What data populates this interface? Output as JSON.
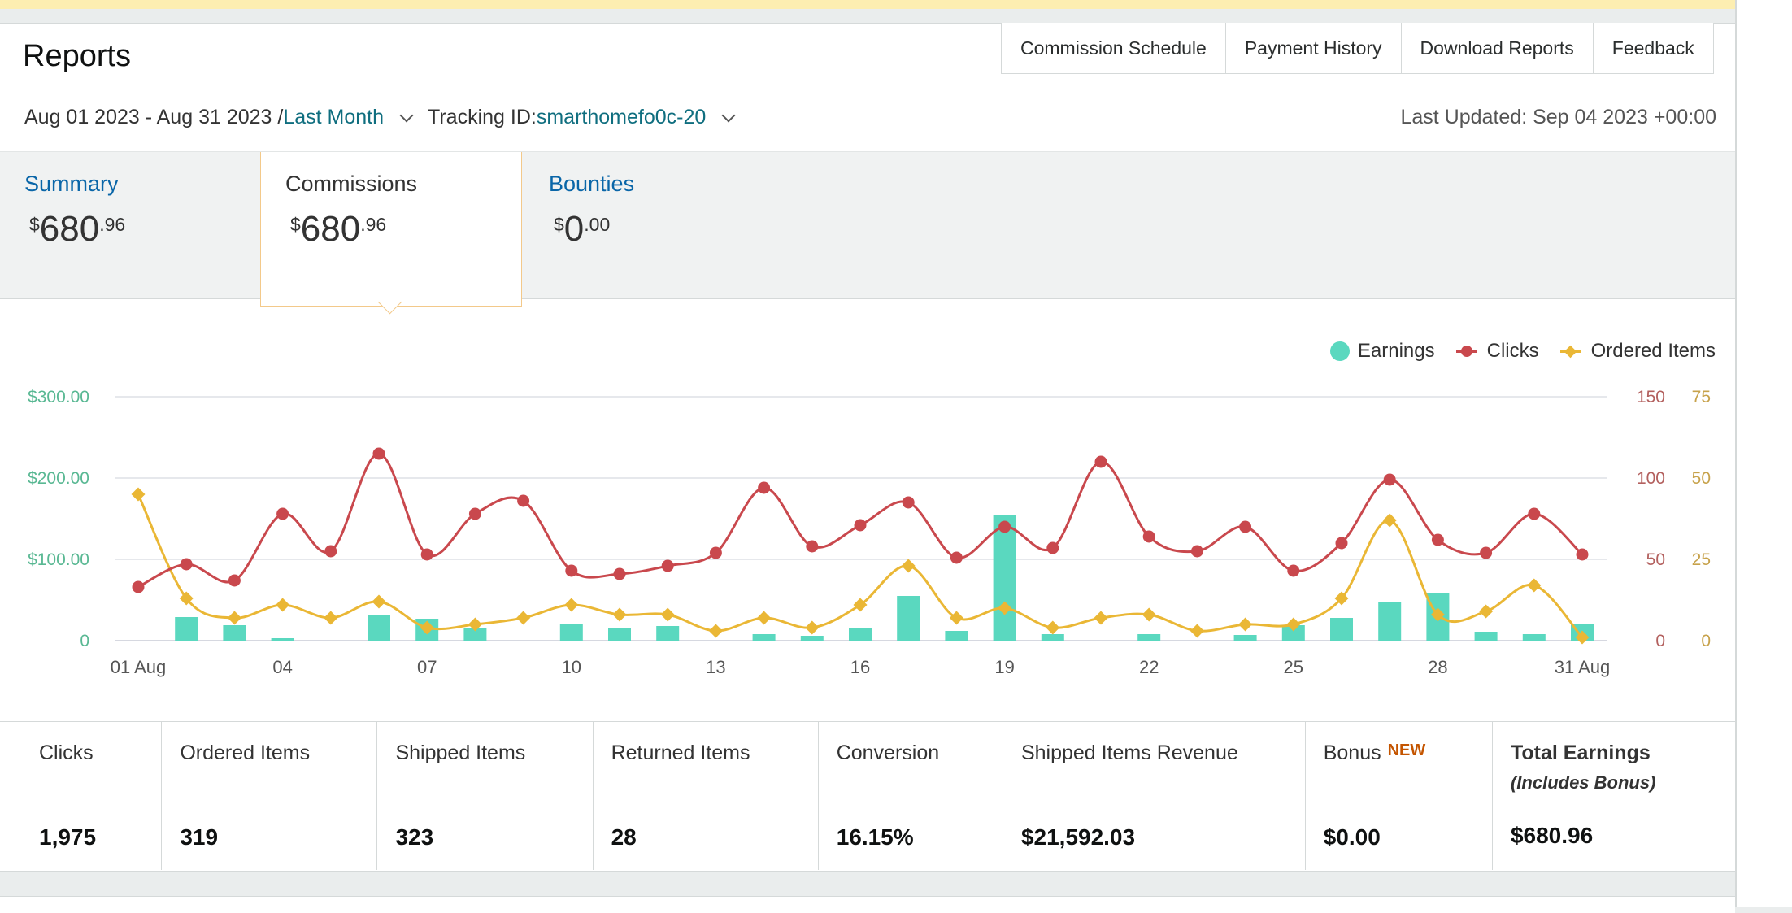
{
  "header": {
    "title": "Reports",
    "tabs": [
      "Commission Schedule",
      "Payment History",
      "Download Reports",
      "Feedback"
    ],
    "date_range": "Aug 01 2023 - Aug 31 2023 / ",
    "period": "Last Month",
    "tracking_label": "Tracking ID: ",
    "tracking_id": "smarthomefo0c-20",
    "last_updated": "Last Updated: Sep 04 2023 +00:00"
  },
  "summary_tabs": [
    {
      "label": "Summary",
      "currency": "$",
      "whole": "680",
      "cents": ".96"
    },
    {
      "label": "Commissions",
      "currency": "$",
      "whole": "680",
      "cents": ".96"
    },
    {
      "label": "Bounties",
      "currency": "$",
      "whole": "0",
      "cents": ".00"
    }
  ],
  "legend": {
    "earnings": "Earnings",
    "clicks": "Clicks",
    "ordered": "Ordered Items"
  },
  "metrics": {
    "clicks": {
      "label": "Clicks",
      "value": "1,975"
    },
    "ordered": {
      "label": "Ordered Items",
      "value": "319"
    },
    "shipped": {
      "label": "Shipped Items",
      "value": "323"
    },
    "returned": {
      "label": "Returned Items",
      "value": "28"
    },
    "conversion": {
      "label": "Conversion",
      "value": "16.15%"
    },
    "revenue": {
      "label": "Shipped Items Revenue",
      "value": "$21,592.03"
    },
    "bonus": {
      "label": "Bonus",
      "badge": "NEW",
      "value": "$0.00"
    },
    "total": {
      "label": "Total Earnings",
      "sub": "(Includes Bonus)",
      "value": "$680.96"
    }
  },
  "colors": {
    "earnings": "#5ad8bf",
    "clicks": "#c9484d",
    "ordered": "#eab735",
    "link": "#0a66a8",
    "accent_border": "#f3c98a"
  },
  "chart_data": {
    "type": "bar",
    "x": [
      1,
      2,
      3,
      4,
      5,
      6,
      7,
      8,
      9,
      10,
      11,
      12,
      13,
      14,
      15,
      16,
      17,
      18,
      19,
      20,
      21,
      22,
      23,
      24,
      25,
      26,
      27,
      28,
      29,
      30,
      31
    ],
    "x_tick_labels": [
      {
        "day": 1,
        "label": "01 Aug"
      },
      {
        "day": 4,
        "label": "04"
      },
      {
        "day": 7,
        "label": "07"
      },
      {
        "day": 10,
        "label": "10"
      },
      {
        "day": 13,
        "label": "13"
      },
      {
        "day": 16,
        "label": "16"
      },
      {
        "day": 19,
        "label": "19"
      },
      {
        "day": 22,
        "label": "22"
      },
      {
        "day": 25,
        "label": "25"
      },
      {
        "day": 28,
        "label": "28"
      },
      {
        "day": 31,
        "label": "31 Aug"
      }
    ],
    "series": [
      {
        "name": "Earnings",
        "type": "bar",
        "axis": "left",
        "values": [
          0,
          29,
          19,
          3,
          0,
          31,
          27,
          15,
          0,
          20,
          15,
          18,
          0,
          8,
          6,
          15,
          55,
          12,
          155,
          8,
          0,
          8,
          0,
          7,
          19,
          28,
          47,
          59,
          11,
          8,
          20
        ]
      },
      {
        "name": "Clicks",
        "type": "line",
        "axis": "right1",
        "values": [
          33,
          47,
          37,
          78,
          55,
          115,
          53,
          78,
          86,
          43,
          41,
          46,
          54,
          94,
          58,
          71,
          85,
          51,
          70,
          57,
          110,
          64,
          55,
          70,
          43,
          60,
          99,
          62,
          54,
          78,
          53
        ]
      },
      {
        "name": "Ordered Items",
        "type": "line",
        "axis": "right2",
        "values": [
          45,
          13,
          7,
          11,
          7,
          12,
          4,
          5,
          7,
          11,
          8,
          8,
          3,
          7,
          4,
          11,
          23,
          7,
          10,
          4,
          7,
          8,
          3,
          5,
          5,
          13,
          37,
          8,
          9,
          17,
          1
        ]
      }
    ],
    "y_left": {
      "ticks": [
        "0",
        "$100.00",
        "$200.00",
        "$300.00"
      ],
      "range": [
        0,
        300
      ]
    },
    "y_right1": {
      "ticks": [
        "0",
        "50",
        "100",
        "150"
      ],
      "range": [
        0,
        150
      ]
    },
    "y_right2": {
      "ticks": [
        "0",
        "25",
        "50",
        "75"
      ],
      "range": [
        0,
        75
      ]
    },
    "grid": true,
    "legend_position": "top-right"
  }
}
